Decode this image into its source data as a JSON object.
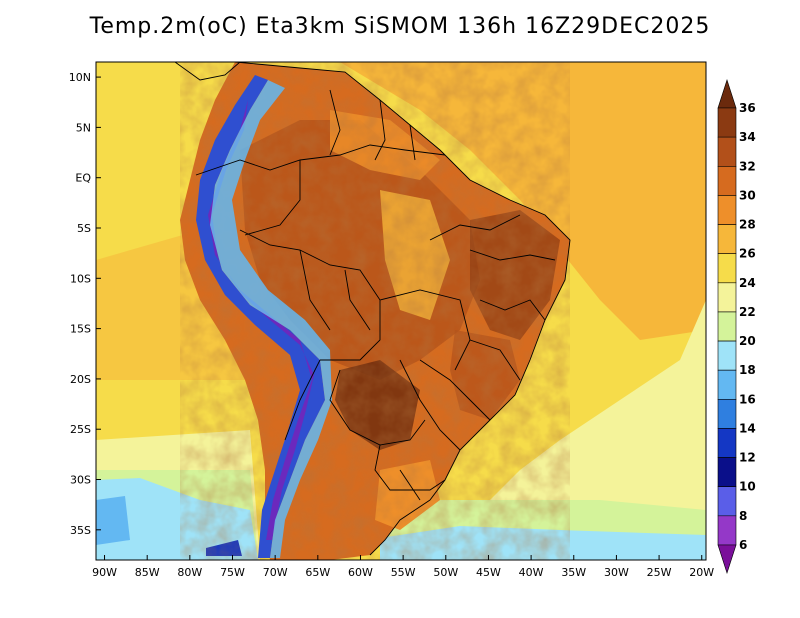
{
  "title": "Temp.2m(oC) Eta3km SiSMOM 136h 16Z29DEC2025",
  "map": {
    "lat_labels": [
      "10N",
      "5N",
      "EQ",
      "5S",
      "10S",
      "15S",
      "20S",
      "25S",
      "30S",
      "35S"
    ],
    "lon_labels": [
      "90W",
      "85W",
      "80W",
      "75W",
      "70W",
      "65W",
      "60W",
      "55W",
      "50W",
      "45W",
      "40W",
      "35W",
      "30W",
      "25W",
      "20W"
    ],
    "lat_values": [
      10,
      5,
      0,
      -5,
      -10,
      -15,
      -20,
      -25,
      -30,
      -35
    ],
    "lon_values": [
      -90,
      -85,
      -80,
      -75,
      -70,
      -65,
      -60,
      -55,
      -50,
      -45,
      -40,
      -35,
      -30,
      -25,
      -20
    ],
    "lat_range": [
      -38,
      11.5
    ],
    "lon_range": [
      -91,
      -19.5
    ]
  },
  "colorbar": {
    "labels": [
      "36",
      "34",
      "32",
      "30",
      "28",
      "26",
      "24",
      "22",
      "20",
      "18",
      "16",
      "14",
      "12",
      "10",
      "8",
      "6"
    ],
    "colors": [
      "#6b2a0d",
      "#8b3a12",
      "#b2501a",
      "#d66b1f",
      "#ee8f2a",
      "#f6b73a",
      "#f6dc4a",
      "#f4f39a",
      "#d4f39a",
      "#9fe3f8",
      "#63b8f2",
      "#2f7fe0",
      "#1437c4",
      "#0a0f8a",
      "#5a5ee8",
      "#9438c8",
      "#7a0f9a"
    ]
  },
  "colors": {
    "ocean_warm": "#f6b73a",
    "ocean_mid": "#f6dc4a",
    "ocean_cool": "#f4f39a",
    "ocean_cold": "#9fe3f8",
    "land_hot": "#b2501a",
    "land_warm": "#d66b1f",
    "andes_cold": "#2f4fd0"
  }
}
